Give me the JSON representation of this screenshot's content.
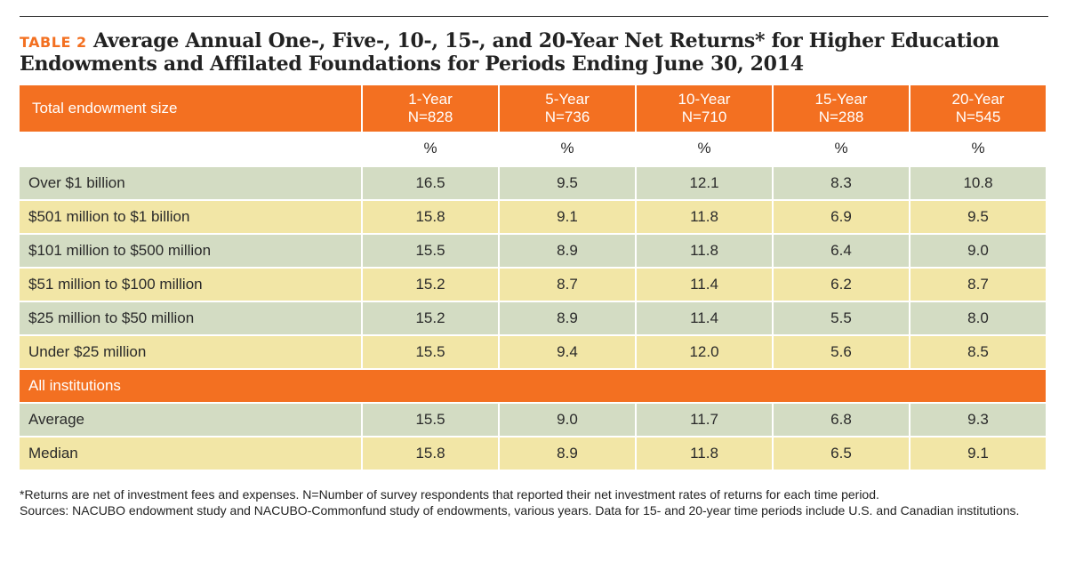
{
  "title": {
    "tag": "TABLE 2",
    "text": "Average Annual One-, Five-, 10-, 15-, and 20-Year Net Returns* for Higher Education Endowments and Affilated Foundations for Periods Ending June 30, 2014"
  },
  "table": {
    "header": {
      "label": "Total endowment size",
      "columns": [
        {
          "period": "1-Year",
          "n": "N=828"
        },
        {
          "period": "5-Year",
          "n": "N=736"
        },
        {
          "period": "10-Year",
          "n": "N=710"
        },
        {
          "period": "15-Year",
          "n": "N=288"
        },
        {
          "period": "20-Year",
          "n": "N=545"
        }
      ]
    },
    "unit": "%",
    "rows": [
      {
        "label": "Over  $1 billion",
        "values": [
          "16.5",
          "9.5",
          "12.1",
          "8.3",
          "10.8"
        ]
      },
      {
        "label": "$501 million to $1 billion",
        "values": [
          "15.8",
          "9.1",
          "11.8",
          "6.9",
          "9.5"
        ]
      },
      {
        "label": "$101 million to $500 million",
        "values": [
          "15.5",
          "8.9",
          "11.8",
          "6.4",
          "9.0"
        ]
      },
      {
        "label": "$51 million to $100 million",
        "values": [
          "15.2",
          "8.7",
          "11.4",
          "6.2",
          "8.7"
        ]
      },
      {
        "label": "$25 million to $50 million",
        "values": [
          "15.2",
          "8.9",
          "11.4",
          "5.5",
          "8.0"
        ]
      },
      {
        "label": "Under $25 million",
        "values": [
          "15.5",
          "9.4",
          "12.0",
          "5.6",
          "8.5"
        ]
      }
    ],
    "section_label": "All institutions",
    "summary_rows": [
      {
        "label": "Average",
        "values": [
          "15.5",
          "9.0",
          "11.7",
          "6.8",
          "9.3"
        ]
      },
      {
        "label": "Median",
        "values": [
          "15.8",
          "8.9",
          "11.8",
          "6.5",
          "9.1"
        ]
      }
    ]
  },
  "notes": {
    "footnote": "*Returns are net of investment fees and expenses. N=Number of survey respondents that reported their net investment rates of returns for each time period.",
    "sources": "Sources: NACUBO endowment study and NACUBO-Commonfund study of endowments, various years. Data for 15- and 20-year time periods include U.S. and Canadian institutions."
  },
  "colors": {
    "accent_orange": "#f37021",
    "row_green": "#d3dcc3",
    "row_yellow": "#f2e6a6"
  }
}
